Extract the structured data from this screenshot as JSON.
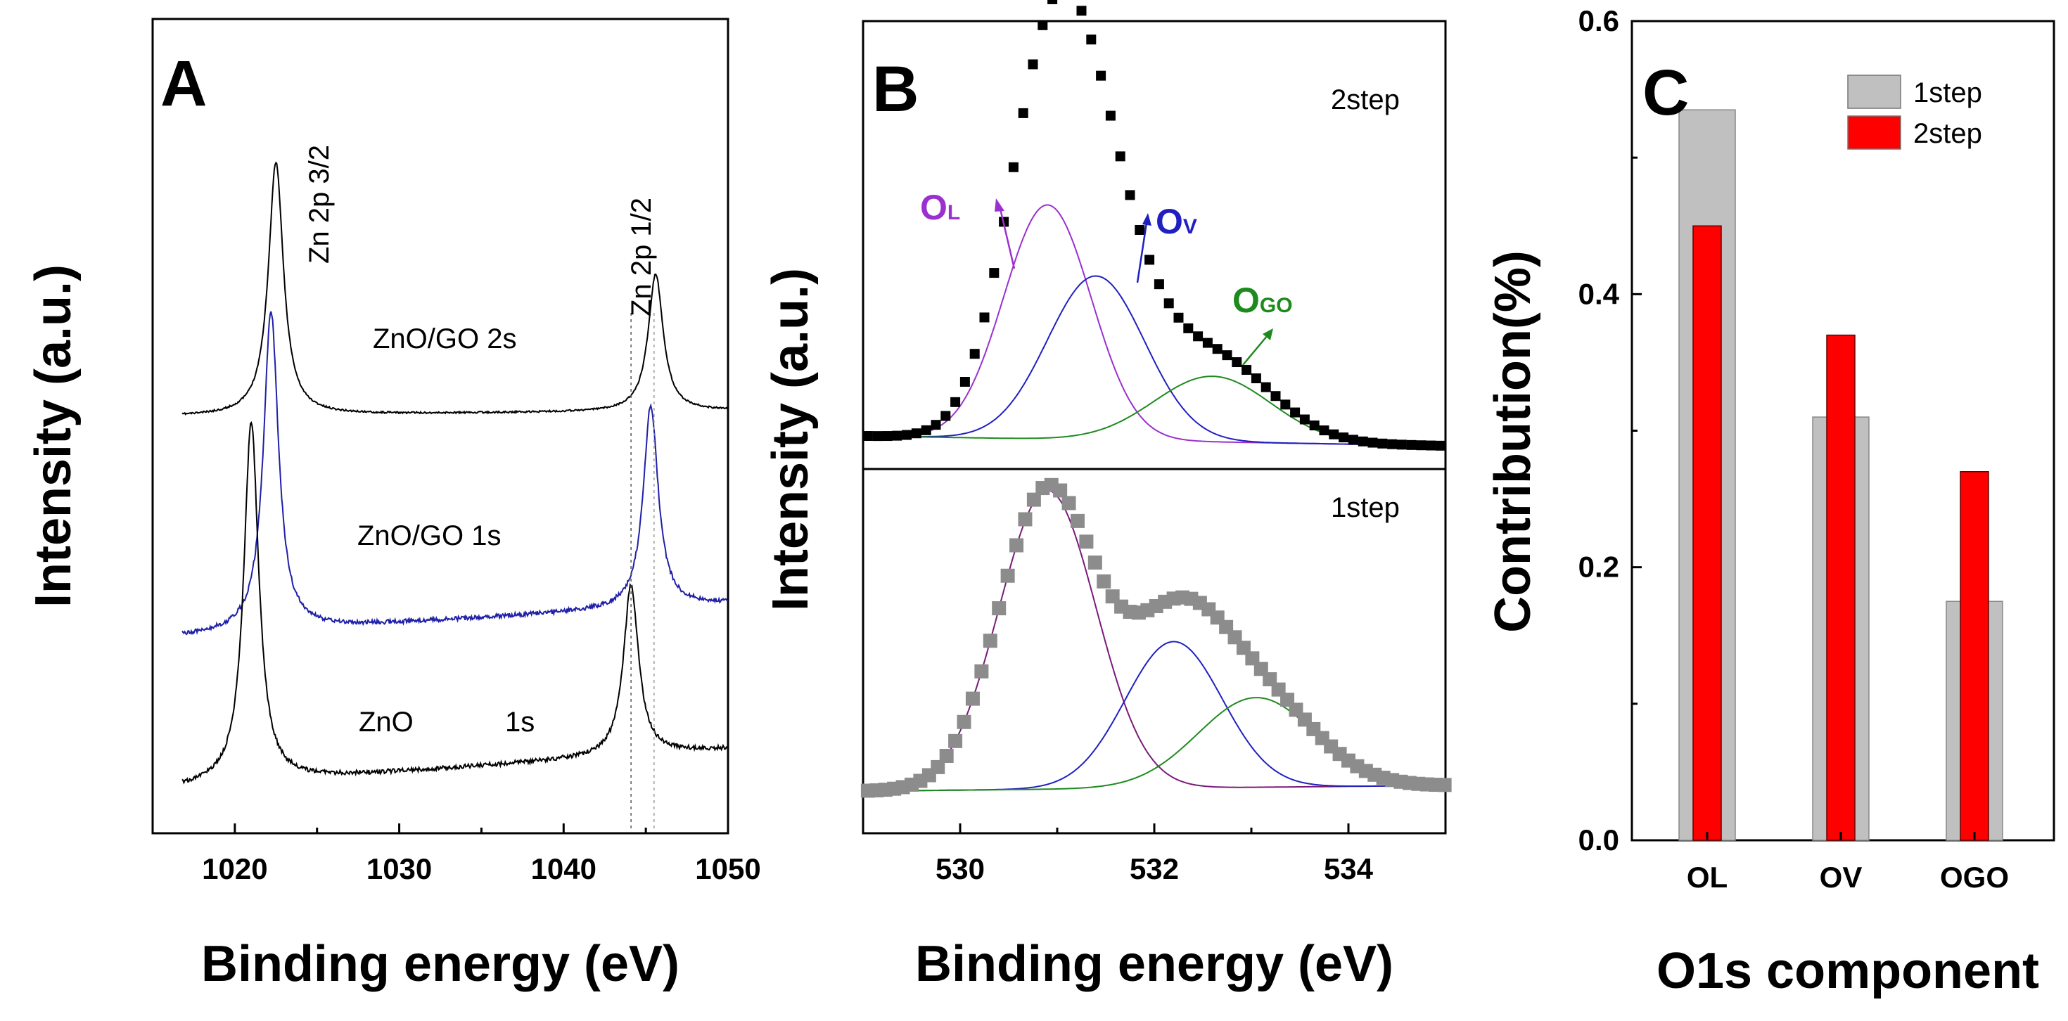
{
  "chart_data": [
    {
      "panel": "A",
      "type": "line",
      "panel_label": "A",
      "xlabel": "Binding energy (eV)",
      "ylabel": "Intensity (a.u.)",
      "xlim": [
        1015,
        1050
      ],
      "xticks": [
        1020,
        1030,
        1040,
        1050
      ],
      "peak_labels": [
        "Zn 2p 3/2",
        "Zn 2p 1/2"
      ],
      "series": [
        {
          "name": "ZnO/GO 2s",
          "color": "#000000",
          "peak1": 1022.5,
          "peak2": 1045.6,
          "offset": 2
        },
        {
          "name": "ZnO/GO 1s",
          "color": "#1f1fa8",
          "peak1": 1022.2,
          "peak2": 1045.3,
          "offset": 1
        },
        {
          "name": "ZnO",
          "extra_label": "1s",
          "color": "#000000",
          "peak1": 1021.0,
          "peak2": 1044.1,
          "offset": 0
        }
      ],
      "reference_lines": [
        1044.1,
        1045.5
      ]
    },
    {
      "panel": "B",
      "type": "scatter",
      "panel_label": "B",
      "xlabel": "Binding energy (eV)",
      "ylabel": "Intensity (a.u.)",
      "xlim": [
        529,
        535
      ],
      "xticks": [
        530,
        532,
        534
      ],
      "subplots": [
        {
          "name": "2step",
          "marker_color": "#000000",
          "peaks": [
            {
              "label": "OL",
              "center": 530.9,
              "sigma": 0.45,
              "height": 1.0,
              "color": "#9b30d0"
            },
            {
              "label": "OV",
              "center": 531.4,
              "sigma": 0.5,
              "height": 0.7,
              "color": "#2020c0"
            },
            {
              "label": "OGO",
              "center": 532.6,
              "sigma": 0.6,
              "height": 0.28,
              "color": "#1e8a1e"
            }
          ]
        },
        {
          "name": "1step",
          "marker_color": "#8c8c8c",
          "peaks": [
            {
              "label": "OL",
              "center": 530.9,
              "sigma": 0.5,
              "height": 1.0,
              "color": "#7a1a7a"
            },
            {
              "label": "OV",
              "center": 532.2,
              "sigma": 0.5,
              "height": 0.49,
              "color": "#2020c0"
            },
            {
              "label": "OGO",
              "center": 533.05,
              "sigma": 0.6,
              "height": 0.3,
              "color": "#1e8a1e"
            }
          ]
        }
      ],
      "annotations": [
        {
          "main": "O",
          "sub": "L",
          "color": "#9b30d0"
        },
        {
          "main": "O",
          "sub": "V",
          "color": "#2020c0"
        },
        {
          "main": "O",
          "sub": "GO",
          "color": "#1e8a1e"
        }
      ]
    },
    {
      "panel": "C",
      "type": "bar",
      "panel_label": "C",
      "xlabel": "O1s component",
      "ylabel": "Contribution(%)",
      "ylim": [
        0.0,
        0.6
      ],
      "yticks": [
        "0.0",
        "0.2",
        "0.4",
        "0.6"
      ],
      "categories": [
        "OL",
        "OV",
        "OGO"
      ],
      "series": [
        {
          "name": "1step",
          "color": "#c0c0c0",
          "values": [
            0.535,
            0.31,
            0.175
          ]
        },
        {
          "name": "2step",
          "color": "#ff0000",
          "values": [
            0.45,
            0.37,
            0.27
          ]
        }
      ],
      "legend": "top-right"
    }
  ]
}
